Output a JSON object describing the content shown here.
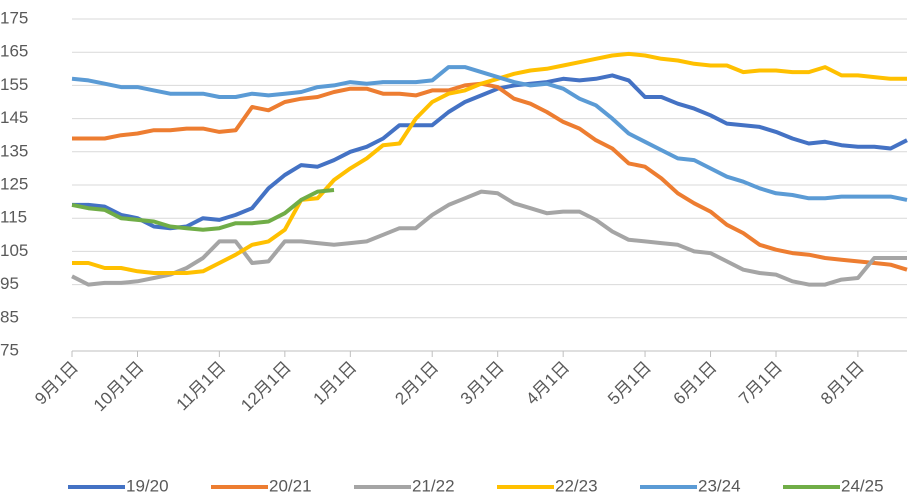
{
  "chart_data": {
    "type": "line",
    "categories": [
      "9月1日",
      null,
      null,
      null,
      "10月1日",
      null,
      null,
      null,
      null,
      "11月1日",
      null,
      null,
      null,
      "12月1日",
      null,
      null,
      null,
      "1月1日",
      null,
      null,
      null,
      null,
      "2月1日",
      null,
      null,
      null,
      "3月1日",
      null,
      null,
      null,
      "4月1日",
      null,
      null,
      null,
      null,
      "5月1日",
      null,
      null,
      null,
      "6月1日",
      null,
      null,
      null,
      "7月1日",
      null,
      null,
      null,
      null,
      "8月1日",
      null,
      null,
      null
    ],
    "series": [
      {
        "name": "19/20",
        "color": "#4472c4",
        "values": [
          119,
          119,
          118.5,
          116,
          115,
          112.5,
          112,
          112.5,
          115,
          114.5,
          116,
          118,
          124,
          128,
          131,
          130.5,
          132.5,
          135,
          136.5,
          139,
          143,
          143,
          143,
          147,
          150,
          152,
          154,
          155,
          155.5,
          156,
          157,
          156.5,
          157,
          158,
          156.5,
          151.5,
          151.5,
          149.5,
          148,
          146,
          143.5,
          143,
          142.5,
          141,
          139,
          137.5,
          138,
          137,
          136.5,
          136.5,
          136,
          138.5
        ]
      },
      {
        "name": "20/21",
        "color": "#ed7d31",
        "values": [
          139,
          139,
          139,
          140,
          140.5,
          141.5,
          141.5,
          142,
          142,
          141,
          141.5,
          148.5,
          147.5,
          150,
          151,
          151.5,
          153,
          154,
          154,
          152.5,
          152.5,
          152,
          153.5,
          153.5,
          155,
          155.5,
          154.5,
          151,
          149.5,
          147,
          144,
          142,
          138.5,
          136,
          131.5,
          130.5,
          127,
          122.5,
          119.5,
          117,
          113,
          110.5,
          107,
          105.5,
          104.5,
          104,
          103,
          102.5,
          102,
          101.5,
          101,
          99.5
        ]
      },
      {
        "name": "21/22",
        "color": "#a5a5a5",
        "values": [
          97.5,
          95,
          95.5,
          95.5,
          96,
          97,
          98,
          100,
          103,
          108,
          108,
          101.5,
          102,
          108,
          108,
          107.5,
          107,
          107.5,
          108,
          110,
          112,
          112,
          116,
          119,
          121,
          123,
          122.5,
          119.5,
          118,
          116.5,
          117,
          117,
          114.5,
          111,
          108.5,
          108,
          107.5,
          107,
          105,
          104.5,
          102,
          99.5,
          98.5,
          98,
          96,
          95,
          95,
          96.5,
          97,
          103,
          103,
          103
        ]
      },
      {
        "name": "22/23",
        "color": "#ffc000",
        "values": [
          101.5,
          101.5,
          100,
          100,
          99,
          98.5,
          98.5,
          98.5,
          99,
          101.5,
          104,
          107,
          108,
          111.5,
          120.5,
          121,
          126.5,
          130,
          133,
          137,
          137.5,
          145,
          150,
          152.5,
          153.5,
          155.5,
          157,
          158.5,
          159.5,
          160,
          161,
          162,
          163,
          164,
          164.5,
          164,
          163,
          162.5,
          161.5,
          161,
          161,
          159,
          159.5,
          159.5,
          159,
          159,
          160.5,
          158,
          158,
          157.5,
          157,
          157
        ]
      },
      {
        "name": "23/24",
        "color": "#5b9bd5",
        "values": [
          157,
          156.5,
          155.5,
          154.5,
          154.5,
          153.5,
          152.5,
          152.5,
          152.5,
          151.5,
          151.5,
          152.5,
          152,
          152.5,
          153,
          154.5,
          155,
          156,
          155.5,
          156,
          156,
          156,
          156.5,
          160.5,
          160.5,
          159,
          157.5,
          156,
          155,
          155.5,
          154,
          151,
          149,
          145,
          140.5,
          138,
          135.5,
          133,
          132.5,
          130,
          127.5,
          126,
          124,
          122.5,
          122,
          121,
          121,
          121.5,
          121.5,
          121.5,
          121.5,
          120.5
        ]
      },
      {
        "name": "24/25",
        "color": "#70ad47",
        "values": [
          119,
          118,
          117.5,
          115,
          114.5,
          114,
          112.5,
          112,
          111.5,
          112,
          113.5,
          113.5,
          114,
          116.5,
          120.5,
          123,
          123.5,
          null,
          null,
          null,
          null,
          null,
          null,
          null,
          null,
          null,
          null,
          null,
          null,
          null,
          null,
          null,
          null,
          null,
          null,
          null,
          null,
          null,
          null,
          null,
          null,
          null,
          null,
          null,
          null,
          null,
          null,
          null,
          null,
          null,
          null,
          null
        ]
      }
    ],
    "ylim": [
      75,
      175
    ],
    "yticks": [
      75,
      85,
      95,
      105,
      115,
      125,
      135,
      145,
      155,
      165,
      175
    ],
    "grid": true
  }
}
